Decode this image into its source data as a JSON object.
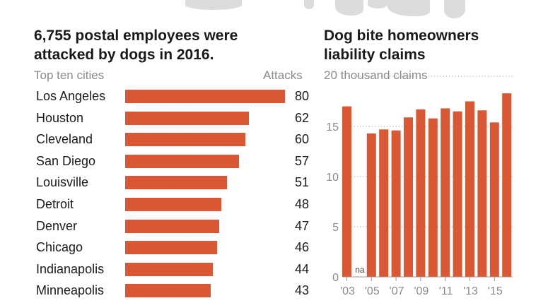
{
  "chart_data": [
    {
      "type": "bar",
      "orientation": "horizontal",
      "title": "6,755 postal employees were attacked by dogs in 2016.",
      "category_label": "Top ten cities",
      "value_label": "Attacks",
      "categories": [
        "Los Angeles",
        "Houston",
        "Cleveland",
        "San Diego",
        "Louisville",
        "Detroit",
        "Denver",
        "Chicago",
        "Indianapolis",
        "Minneapolis"
      ],
      "values": [
        80,
        62,
        60,
        57,
        51,
        48,
        47,
        46,
        44,
        43
      ],
      "xlim": [
        0,
        80
      ],
      "bar_color": "#d95733"
    },
    {
      "type": "bar",
      "title": "Dog bite homeowners liability claims",
      "ylabel": "20 thousand claims",
      "years": [
        2003,
        2004,
        2005,
        2006,
        2007,
        2008,
        2009,
        2010,
        2011,
        2012,
        2013,
        2014,
        2015,
        2016
      ],
      "values": [
        17.0,
        null,
        14.3,
        14.7,
        14.6,
        15.9,
        16.7,
        15.8,
        16.8,
        16.5,
        17.5,
        16.6,
        15.4,
        18.3
      ],
      "missing_label": "na",
      "ylim": [
        0,
        20
      ],
      "yticks": [
        "0",
        "5",
        "10",
        "15"
      ],
      "xticks": [
        "'03",
        "'05",
        "'07",
        "'09",
        "'11",
        "'13",
        "'15"
      ],
      "grid": "dotted horizontal",
      "bar_color": "#d95733"
    }
  ]
}
